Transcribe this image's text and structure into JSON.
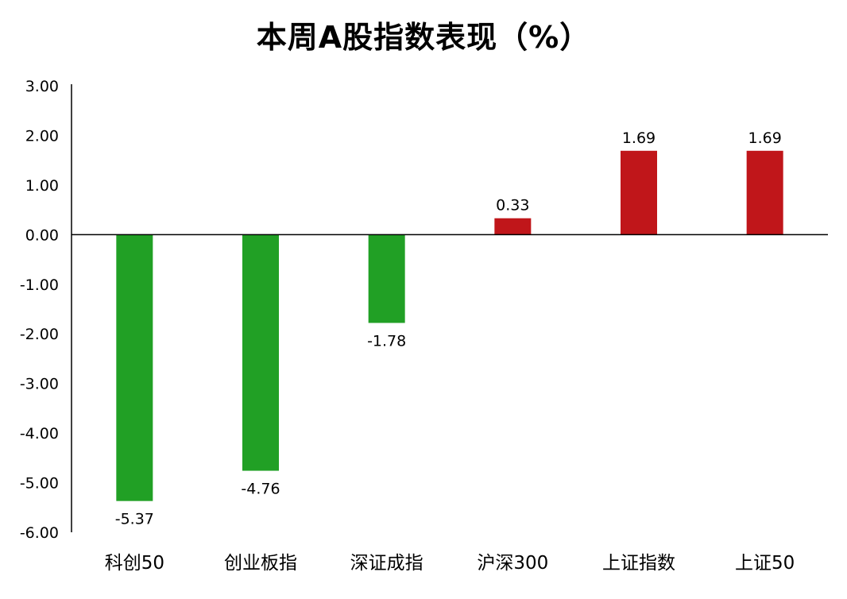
{
  "chart_data": {
    "type": "bar",
    "title": "本周A股指数表现（%）",
    "xlabel": "",
    "ylabel": "",
    "categories": [
      "科创50",
      "创业板指",
      "深证成指",
      "沪深300",
      "上证指数",
      "上证50"
    ],
    "values": [
      -5.37,
      -4.76,
      -1.78,
      0.33,
      1.69,
      1.69
    ],
    "data_labels": [
      "-5.37",
      "-4.76",
      "-1.78",
      "0.33",
      "1.69",
      "1.69"
    ],
    "ylim": [
      -6,
      3
    ],
    "yticks": [
      3,
      2,
      1,
      0,
      -1,
      -2,
      -3,
      -4,
      -5,
      -6
    ],
    "ytick_labels": [
      "3.00",
      "2.00",
      "1.00",
      "0.00",
      "-1.00",
      "-2.00",
      "-3.00",
      "-4.00",
      "-5.00",
      "-6.00"
    ],
    "grid": false,
    "legend": "none",
    "colors": {
      "positive": "#C0161A",
      "negative": "#21A025",
      "axis": "#000000"
    }
  }
}
